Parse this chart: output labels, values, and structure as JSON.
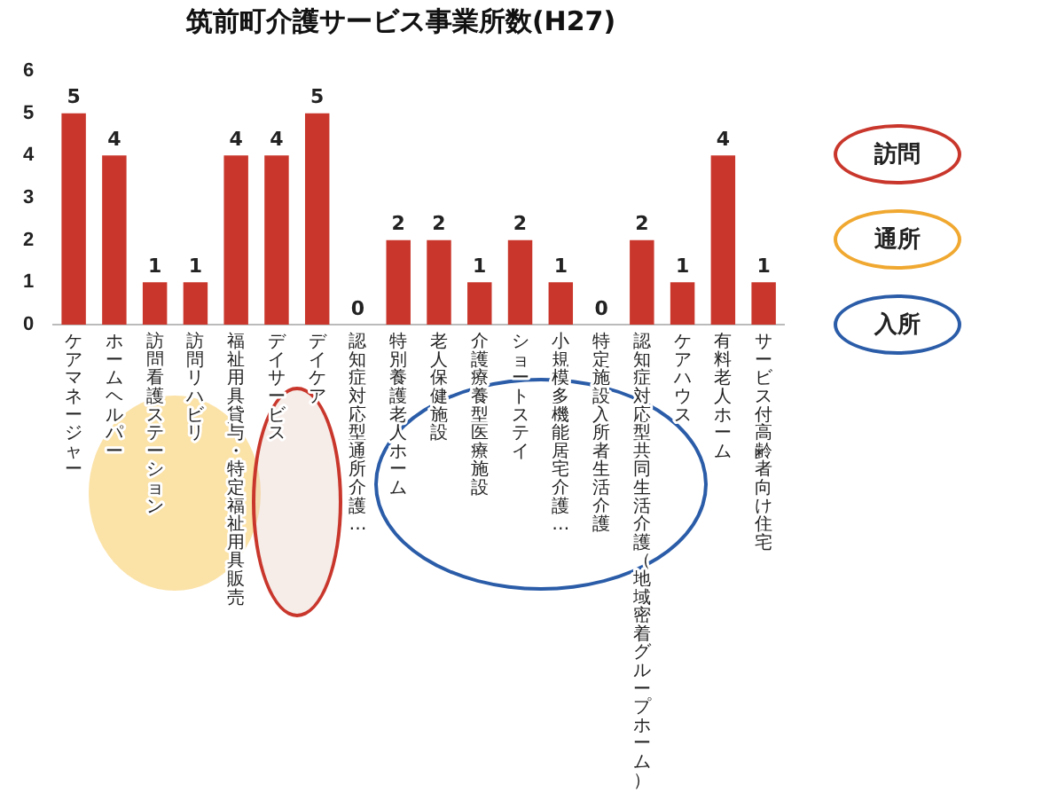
{
  "chart_data": {
    "type": "bar",
    "title": "筑前町介護サービス事業所数(H27)",
    "categories": [
      "ケアマネージャー",
      "ホームヘルパー",
      "訪問看護ステーション",
      "訪問リハビリ",
      "福祉用具貸与・特定福祉用具販売",
      "デイサービス",
      "デイケア",
      "認知症対応型通所介護…",
      "特別養護老人ホーム",
      "老人保健施設",
      "介護療養型医療施設",
      "ショートステイ",
      "小規模多機能居宅介護…",
      "特定施設入所者生活介護",
      "認知症対応型共同生活介護（地域密着グループホーム）",
      "ケアハウス",
      "有料老人ホーム",
      "サービス付高齢者向け住宅"
    ],
    "values": [
      5,
      4,
      1,
      1,
      4,
      4,
      5,
      0,
      2,
      2,
      1,
      2,
      1,
      0,
      2,
      1,
      4,
      1
    ],
    "color": "#c9372c",
    "ylim": [
      0,
      6
    ],
    "yticks": [
      0,
      1,
      2,
      3,
      4,
      5,
      6
    ],
    "grid": false,
    "legend": false,
    "data_labels": true,
    "annotations": [
      "訪問",
      "通所",
      "入所"
    ]
  }
}
